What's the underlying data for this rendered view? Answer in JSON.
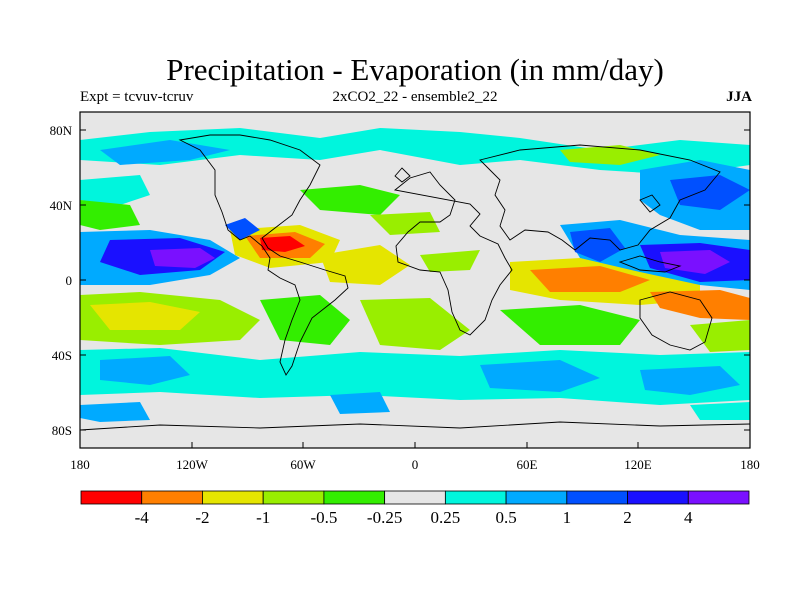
{
  "title": "Precipitation - Evaporation (in mm/day)",
  "subtitle_left": "Expt = tcvuv-tcruv",
  "subtitle_center": "2xCO2_22 - ensemble2_22",
  "subtitle_right": "JJA",
  "lat_ticks": [
    "80N",
    "40N",
    "0",
    "40S",
    "80S"
  ],
  "lon_ticks": [
    "180",
    "120W",
    "60W",
    "0",
    "60E",
    "120E",
    "180"
  ],
  "colorbar": {
    "colors": [
      "#ff0000",
      "#ff7f00",
      "#e5e500",
      "#99ee00",
      "#33ee00",
      "#e6e6e6",
      "#00f5dd",
      "#00aaff",
      "#0050ff",
      "#1a10ff",
      "#7a10ff"
    ],
    "labels": [
      "-4",
      "-2",
      "-1",
      "-0.5",
      "-0.25",
      "0.25",
      "0.5",
      "1",
      "2",
      "4"
    ]
  }
}
